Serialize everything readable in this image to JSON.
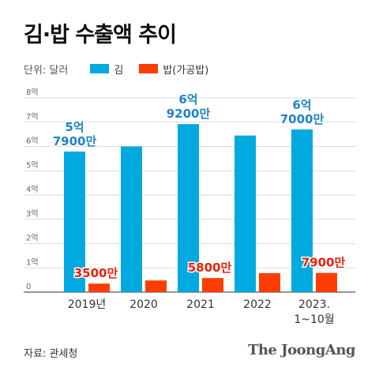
{
  "header": {
    "title": "김·밥 수출액 추이"
  },
  "legend": {
    "unit": "단위: 달러",
    "items": [
      {
        "name": "김",
        "color": "#00a9df"
      },
      {
        "name": "밥(가공밥)",
        "color": "#ff3d00"
      }
    ]
  },
  "chart_data": {
    "type": "bar",
    "title": "김·밥 수출액 추이",
    "ylabel": "",
    "xlabel": "",
    "ylim": [
      0,
      8
    ],
    "yticks": [
      {
        "value": 0,
        "label": "0"
      },
      {
        "value": 1,
        "label": "1억"
      },
      {
        "value": 2,
        "label": "2억"
      },
      {
        "value": 3,
        "label": "3억"
      },
      {
        "value": 4,
        "label": "4억"
      },
      {
        "value": 5,
        "label": "5억"
      },
      {
        "value": 6,
        "label": "6억"
      },
      {
        "value": 7,
        "label": "7억"
      },
      {
        "value": 8,
        "label": "8억"
      }
    ],
    "grid": true,
    "legend": "top-left",
    "categories": [
      [
        "2019년"
      ],
      [
        "2020"
      ],
      [
        "2021"
      ],
      [
        "2022"
      ],
      [
        "2023.",
        "1~10월"
      ]
    ],
    "series": [
      {
        "name": "김",
        "color": "#00a9df",
        "values": [
          5.79,
          6.0,
          6.92,
          6.45,
          6.7
        ],
        "labels": [
          [
            "5억",
            "7900만"
          ],
          null,
          [
            "6억",
            "9200만"
          ],
          null,
          [
            "6억",
            "7000만"
          ]
        ]
      },
      {
        "name": "밥(가공밥)",
        "color": "#ff3d00",
        "values": [
          0.35,
          0.48,
          0.58,
          0.78,
          0.79
        ],
        "labels": [
          "3500만",
          null,
          "5800만",
          null,
          "7900만"
        ]
      }
    ]
  },
  "footer": {
    "source": "자료: 관세청",
    "brand": "The JoongAng"
  }
}
